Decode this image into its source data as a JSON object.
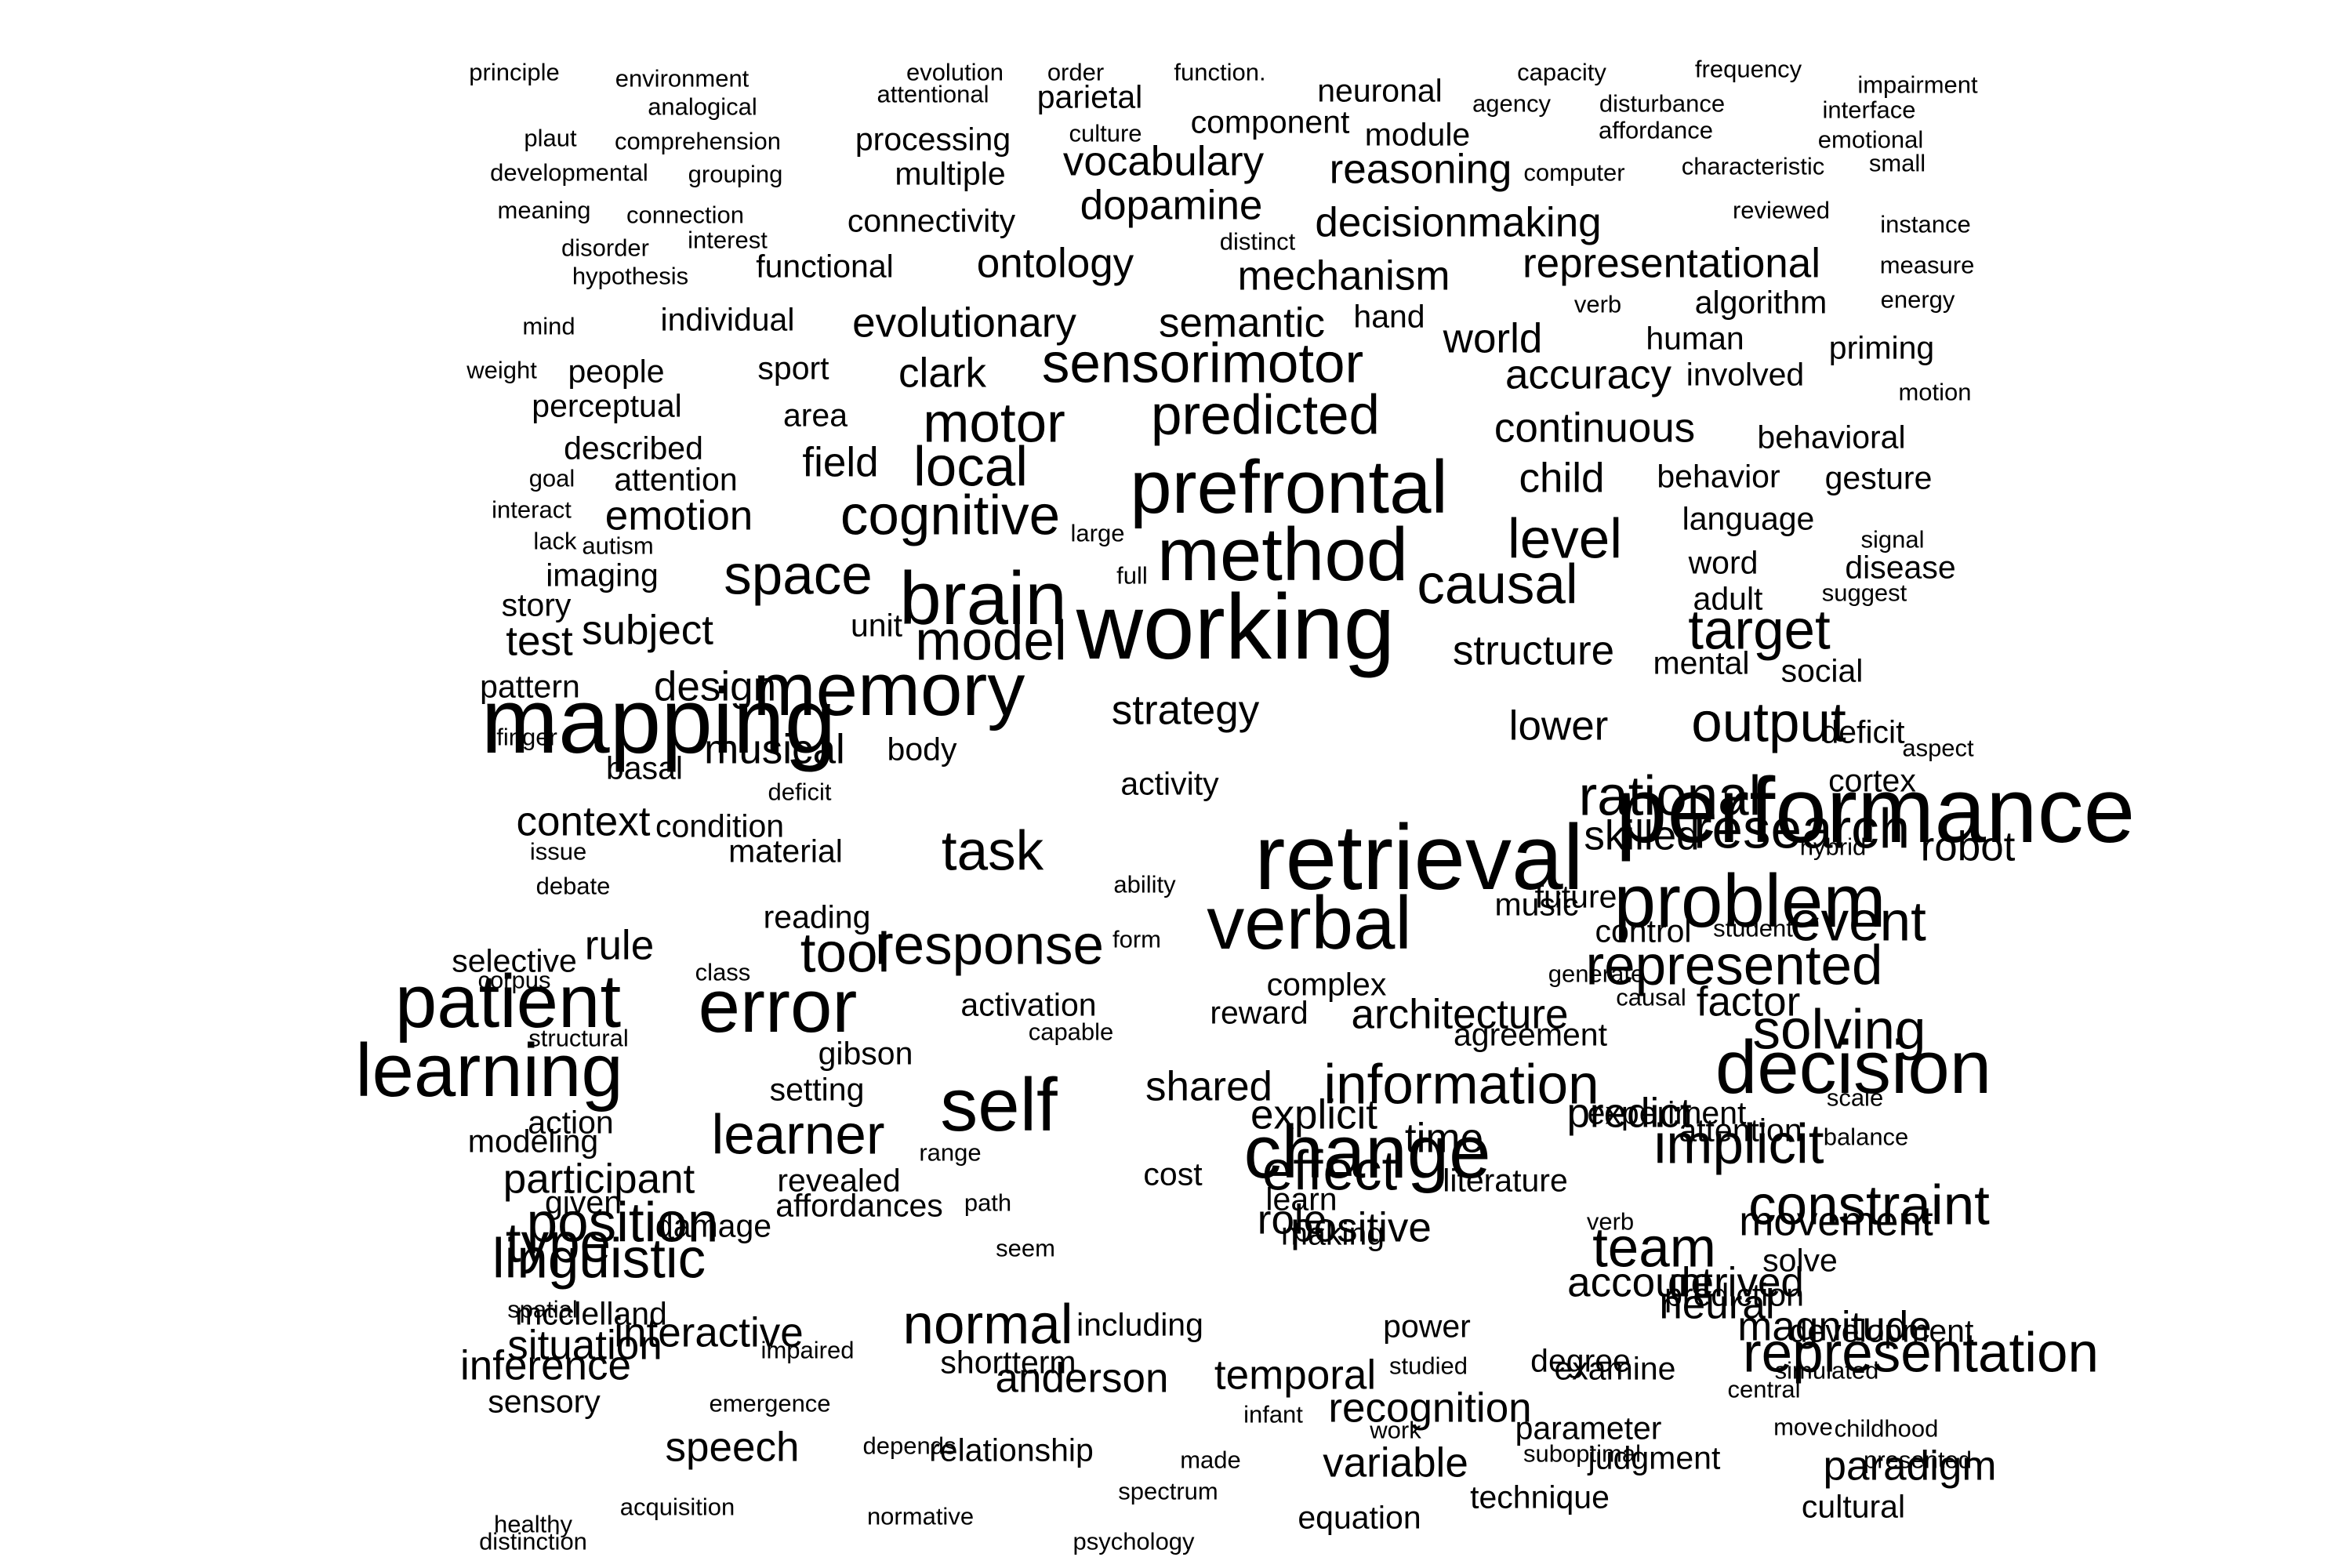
{
  "words": [
    [
      "principle",
      1
    ],
    [
      "environment",
      1
    ],
    [
      "evolution",
      1
    ],
    [
      "order",
      1
    ],
    [
      "function.",
      1
    ],
    [
      "capacity",
      1
    ],
    [
      "frequency",
      1
    ],
    [
      "impairment",
      1
    ],
    [
      "analogical",
      1
    ],
    [
      "attentional",
      1
    ],
    [
      "parietal",
      2
    ],
    [
      "neuronal",
      2
    ],
    [
      "agency",
      1
    ],
    [
      "disturbance",
      1
    ],
    [
      "interface",
      1
    ],
    [
      "plaut",
      1
    ],
    [
      "comprehension",
      1
    ],
    [
      "processing",
      2
    ],
    [
      "culture",
      1
    ],
    [
      "component",
      2
    ],
    [
      "module",
      2
    ],
    [
      "affordance",
      1
    ],
    [
      "emotional",
      1
    ],
    [
      "developmental",
      1
    ],
    [
      "grouping",
      1
    ],
    [
      "multiple",
      2
    ],
    [
      "vocabulary",
      3
    ],
    [
      "reasoning",
      3
    ],
    [
      "computer",
      1
    ],
    [
      "characteristic",
      1
    ],
    [
      "small",
      1
    ],
    [
      "meaning",
      1
    ],
    [
      "connection",
      1
    ],
    [
      "connectivity",
      2
    ],
    [
      "dopamine",
      3
    ],
    [
      "reviewed",
      1
    ],
    [
      "instance",
      1
    ],
    [
      "decisionmaking",
      3
    ],
    [
      "disorder",
      1
    ],
    [
      "interest",
      1
    ],
    [
      "distinct",
      1
    ],
    [
      "hypothesis",
      1
    ],
    [
      "functional",
      2
    ],
    [
      "ontology",
      3
    ],
    [
      "mechanism",
      3
    ],
    [
      "representational",
      3
    ],
    [
      "measure",
      1
    ],
    [
      "energy",
      1
    ],
    [
      "verb",
      1
    ],
    [
      "algorithm",
      2
    ],
    [
      "mind",
      1
    ],
    [
      "individual",
      2
    ],
    [
      "evolutionary",
      3
    ],
    [
      "semantic",
      3
    ],
    [
      "hand",
      2
    ],
    [
      "world",
      3
    ],
    [
      "human",
      2
    ],
    [
      "priming",
      2
    ],
    [
      "weight",
      1
    ],
    [
      "people",
      2
    ],
    [
      "sport",
      2
    ],
    [
      "clark",
      3
    ],
    [
      "sensorimotor",
      4
    ],
    [
      "accuracy",
      3
    ],
    [
      "involved",
      2
    ],
    [
      "motion",
      1
    ],
    [
      "perceptual",
      2
    ],
    [
      "area",
      2
    ],
    [
      "motor",
      4
    ],
    [
      "predicted",
      4
    ],
    [
      "continuous",
      3
    ],
    [
      "behavioral",
      2
    ],
    [
      "described",
      2
    ],
    [
      "field",
      3
    ],
    [
      "local",
      4
    ],
    [
      "goal",
      1
    ],
    [
      "attention",
      2
    ],
    [
      "child",
      3
    ],
    [
      "behavior",
      2
    ],
    [
      "gesture",
      2
    ],
    [
      "prefrontal",
      5
    ],
    [
      "interact",
      1
    ],
    [
      "emotion",
      3
    ],
    [
      "cognitive",
      4
    ],
    [
      "language",
      2
    ],
    [
      "lack",
      1
    ],
    [
      "autism",
      1
    ],
    [
      "large",
      1
    ],
    [
      "level",
      4
    ],
    [
      "signal",
      1
    ],
    [
      "method",
      5
    ],
    [
      "imaging",
      2
    ],
    [
      "space",
      4
    ],
    [
      "full",
      1
    ],
    [
      "word",
      2
    ],
    [
      "disease",
      2
    ],
    [
      "brain",
      5
    ],
    [
      "causal",
      4
    ],
    [
      "adult",
      2
    ],
    [
      "suggest",
      1
    ],
    [
      "story",
      2
    ],
    [
      "subject",
      3
    ],
    [
      "unit",
      2
    ],
    [
      "model",
      4
    ],
    [
      "test",
      3
    ],
    [
      "working",
      6
    ],
    [
      "structure",
      3
    ],
    [
      "target",
      4
    ],
    [
      "mental",
      2
    ],
    [
      "social",
      2
    ],
    [
      "pattern",
      2
    ],
    [
      "design",
      3
    ],
    [
      "memory",
      5
    ],
    [
      "strategy",
      3
    ],
    [
      "mapping",
      6
    ],
    [
      "lower",
      3
    ],
    [
      "deficit",
      2
    ],
    [
      "output",
      4
    ],
    [
      "finger",
      1
    ],
    [
      "musical",
      3
    ],
    [
      "body",
      2
    ],
    [
      "basal",
      2
    ],
    [
      "cortex",
      2
    ],
    [
      "aspect",
      1
    ],
    [
      "deficit",
      1
    ],
    [
      "activity",
      2
    ],
    [
      "rational",
      4
    ],
    [
      "performance",
      6
    ],
    [
      "context",
      3
    ],
    [
      "condition",
      2
    ],
    [
      "research",
      4
    ],
    [
      "material",
      2
    ],
    [
      "issue",
      1
    ],
    [
      "task",
      4
    ],
    [
      "skilled",
      3
    ],
    [
      "hybrid",
      1
    ],
    [
      "robot",
      3
    ],
    [
      "retrieval",
      6
    ],
    [
      "ability",
      1
    ],
    [
      "future",
      2
    ],
    [
      "music",
      2
    ],
    [
      "debate",
      1
    ],
    [
      "problem",
      5
    ],
    [
      "event",
      4
    ],
    [
      "reading",
      2
    ],
    [
      "rule",
      3
    ],
    [
      "control",
      2
    ],
    [
      "causal",
      1
    ],
    [
      "verbal",
      5
    ],
    [
      "student",
      1
    ],
    [
      "form",
      1
    ],
    [
      "selective",
      2
    ],
    [
      "class",
      1
    ],
    [
      "tool",
      4
    ],
    [
      "response",
      4
    ],
    [
      "complex",
      2
    ],
    [
      "generate",
      1
    ],
    [
      "represented",
      4
    ],
    [
      "corpus",
      1
    ],
    [
      "error",
      5
    ],
    [
      "patient",
      5
    ],
    [
      "activation",
      2
    ],
    [
      "reward",
      2
    ],
    [
      "factor",
      3
    ],
    [
      "architecture",
      3
    ],
    [
      "agreement",
      2
    ],
    [
      "solving",
      4
    ],
    [
      "structural",
      1
    ],
    [
      "gibson",
      2
    ],
    [
      "capable",
      1
    ],
    [
      "decision",
      5
    ],
    [
      "learning",
      5
    ],
    [
      "shared",
      3
    ],
    [
      "information",
      4
    ],
    [
      "experiment",
      2
    ],
    [
      "setting",
      2
    ],
    [
      "scale",
      1
    ],
    [
      "action",
      2
    ],
    [
      "self",
      5
    ],
    [
      "explicit",
      3
    ],
    [
      "time",
      3
    ],
    [
      "predict",
      3
    ],
    [
      "learner",
      4
    ],
    [
      "range",
      1
    ],
    [
      "attention",
      2
    ],
    [
      "balance",
      1
    ],
    [
      "change",
      5
    ],
    [
      "modeling",
      2
    ],
    [
      "implicit",
      4
    ],
    [
      "effect",
      4
    ],
    [
      "participant",
      3
    ],
    [
      "revealed",
      2
    ],
    [
      "cost",
      2
    ],
    [
      "literature",
      2
    ],
    [
      "affordances",
      2
    ],
    [
      "learn",
      2
    ],
    [
      "given",
      2
    ],
    [
      "path",
      1
    ],
    [
      "positive",
      3
    ],
    [
      "constraint",
      4
    ],
    [
      "role",
      3
    ],
    [
      "type",
      4
    ],
    [
      "position",
      4
    ],
    [
      "damage",
      2
    ],
    [
      "movement",
      3
    ],
    [
      "verb",
      1
    ],
    [
      "making",
      2
    ],
    [
      "linguistic",
      4
    ],
    [
      "team",
      4
    ],
    [
      "seem",
      1
    ],
    [
      "account",
      3
    ],
    [
      "derived",
      3
    ],
    [
      "solve",
      2
    ],
    [
      "spatial",
      1
    ],
    [
      "mcclelland",
      2
    ],
    [
      "interactive",
      3
    ],
    [
      "including",
      2
    ],
    [
      "neural",
      3
    ],
    [
      "normal",
      4
    ],
    [
      "power",
      2
    ],
    [
      "situation",
      3
    ],
    [
      "development",
      2
    ],
    [
      "impaired",
      1
    ],
    [
      "magnitude",
      3
    ],
    [
      "shortterm",
      2
    ],
    [
      "studied",
      1
    ],
    [
      "prediction",
      2
    ],
    [
      "inference",
      3
    ],
    [
      "degree",
      2
    ],
    [
      "representation",
      4
    ],
    [
      "sensory",
      2
    ],
    [
      "emergence",
      1
    ],
    [
      "simulated",
      1
    ],
    [
      "temporal",
      3
    ],
    [
      "anderson",
      3
    ],
    [
      "infant",
      1
    ],
    [
      "central",
      1
    ],
    [
      "recognition",
      3
    ],
    [
      "examine",
      2
    ],
    [
      "move",
      1
    ],
    [
      "work",
      1
    ],
    [
      "speech",
      3
    ],
    [
      "depends",
      1
    ],
    [
      "made",
      1
    ],
    [
      "relationship",
      2
    ],
    [
      "variable",
      3
    ],
    [
      "paradigm",
      3
    ],
    [
      "judgment",
      2
    ],
    [
      "suboptimal",
      1
    ],
    [
      "spectrum",
      1
    ],
    [
      "acquisition",
      1
    ],
    [
      "normative",
      1
    ],
    [
      "cultural",
      2
    ],
    [
      "psychology",
      1
    ],
    [
      "presented",
      1
    ],
    [
      "childhood",
      1
    ],
    [
      "parameter",
      2
    ],
    [
      "healthy",
      1
    ],
    [
      "equation",
      2
    ],
    [
      "technique",
      2
    ],
    [
      "distinction",
      1
    ]
  ]
}
